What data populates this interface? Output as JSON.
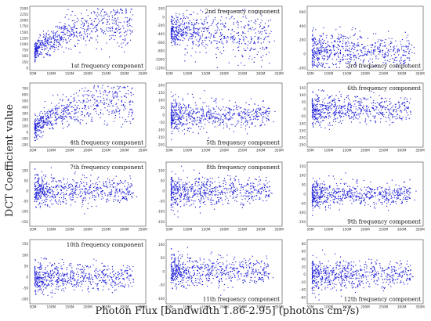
{
  "figure": {
    "ylabel": "DCT Coefficient value",
    "xlabel": "Photon Flux [bandwidth 1.86-2.95] (photons cm²/s)",
    "point_color": "#1f1fd6"
  },
  "chart_data": [
    {
      "type": "scatter",
      "title": "1st frequency component",
      "title_pos": "bottom",
      "x_ticks": [
        "50M",
        "100M",
        "150M",
        "200M",
        "250M",
        "300M",
        "350M"
      ],
      "xlim": [
        50,
        350
      ],
      "y_ticks": [
        0,
        250,
        500,
        750,
        1000,
        1250,
        1500,
        1750,
        2000,
        2250,
        2500
      ],
      "ylim": [
        0,
        2500
      ],
      "shape": "rise",
      "center": 900,
      "spread": 450
    },
    {
      "type": "scatter",
      "title": "2nd frequency component",
      "title_pos": "top",
      "x_ticks": [
        "50M",
        "100M",
        "150M",
        "200M",
        "250M",
        "300M",
        "350M"
      ],
      "xlim": [
        50,
        350
      ],
      "y_ticks": [
        200,
        0,
        -200,
        -400,
        -600,
        -800,
        -1000,
        -1200
      ],
      "ylim": [
        -1200,
        200
      ],
      "shape": "fall",
      "center": -300,
      "spread": 260
    },
    {
      "type": "scatter",
      "title": "3rd frequency component",
      "title_pos": "bottom",
      "x_ticks": [
        "50M",
        "100M",
        "150M",
        "200M",
        "250M",
        "300M",
        "350M"
      ],
      "xlim": [
        50,
        350
      ],
      "y_ticks": [
        -200,
        0,
        200,
        400,
        600
      ],
      "ylim": [
        -200,
        650
      ],
      "shape": "flat",
      "center": 40,
      "spread": 140
    },
    {
      "type": "scatter",
      "title": "4th frequency component",
      "title_pos": "bottom",
      "x_ticks": [
        "50M",
        "100M",
        "150M",
        "200M",
        "250M",
        "300M",
        "350M"
      ],
      "xlim": [
        50,
        350
      ],
      "y_ticks": [
        -200,
        -100,
        0,
        100,
        200,
        300,
        400,
        500,
        600,
        700
      ],
      "ylim": [
        -200,
        750
      ],
      "shape": "rise",
      "center": 150,
      "spread": 170
    },
    {
      "type": "scatter",
      "title": "5th frequency component",
      "title_pos": "bottom",
      "x_ticks": [
        "50M",
        "100M",
        "150M",
        "200M",
        "250M",
        "300M",
        "350M"
      ],
      "xlim": [
        50,
        350
      ],
      "y_ticks": [
        -200,
        -150,
        -100,
        -50,
        0,
        50,
        100,
        150,
        200
      ],
      "ylim": [
        -200,
        200
      ],
      "shape": "flat",
      "center": 0,
      "spread": 55
    },
    {
      "type": "scatter",
      "title": "6th frequency component",
      "title_pos": "top",
      "x_ticks": [
        "50M",
        "100M",
        "150M",
        "200M",
        "250M",
        "300M",
        "350M"
      ],
      "xlim": [
        50,
        350
      ],
      "y_ticks": [
        -250,
        -200,
        -150,
        -100,
        -50,
        0,
        50,
        100,
        150
      ],
      "ylim": [
        -250,
        170
      ],
      "shape": "flat",
      "center": 0,
      "spread": 55
    },
    {
      "type": "scatter",
      "title": "7th frequency component",
      "title_pos": "top",
      "x_ticks": [
        "50M",
        "100M",
        "150M",
        "200M",
        "250M",
        "300M",
        "350M"
      ],
      "xlim": [
        50,
        350
      ],
      "y_ticks": [
        -150,
        -100,
        -50,
        0,
        50,
        100
      ],
      "ylim": [
        -160,
        130
      ],
      "shape": "flat",
      "center": 0,
      "spread": 38
    },
    {
      "type": "scatter",
      "title": "8th frequency component",
      "title_pos": "top",
      "x_ticks": [
        "50M",
        "100M",
        "150M",
        "200M",
        "250M",
        "300M",
        "350M"
      ],
      "xlim": [
        50,
        350
      ],
      "y_ticks": [
        -150,
        -100,
        -50,
        0,
        50,
        100
      ],
      "ylim": [
        -160,
        130
      ],
      "shape": "flat",
      "center": 0,
      "spread": 38
    },
    {
      "type": "scatter",
      "title": "9th frequency component",
      "title_pos": "bottom",
      "x_ticks": [
        "50M",
        "100M",
        "150M",
        "200M",
        "250M",
        "300M",
        "350M"
      ],
      "xlim": [
        50,
        350
      ],
      "y_ticks": [
        -150,
        -100,
        -50,
        0,
        50,
        100,
        150
      ],
      "ylim": [
        -160,
        160
      ],
      "shape": "flat",
      "center": 0,
      "spread": 38
    },
    {
      "type": "scatter",
      "title": "10th frequency component",
      "title_pos": "top",
      "x_ticks": [
        "50M",
        "100M",
        "150M",
        "200M",
        "250M",
        "300M",
        "350M"
      ],
      "xlim": [
        50,
        350
      ],
      "y_ticks": [
        -100,
        -50,
        0,
        50,
        100,
        150
      ],
      "ylim": [
        -110,
        160
      ],
      "shape": "flat",
      "center": 0,
      "spread": 35
    },
    {
      "type": "scatter",
      "title": "11th frequency component",
      "title_pos": "bottom",
      "x_ticks": [
        "50M",
        "100M",
        "150M",
        "200M",
        "250M",
        "300M",
        "350M"
      ],
      "xlim": [
        50,
        350
      ],
      "y_ticks": [
        -100,
        -50,
        0,
        50,
        100
      ],
      "ylim": [
        -110,
        110
      ],
      "shape": "flat",
      "center": 0,
      "spread": 30
    },
    {
      "type": "scatter",
      "title": "12th frequency component",
      "title_pos": "bottom",
      "x_ticks": [
        "50M",
        "100M",
        "150M",
        "200M",
        "250M",
        "300M",
        "350M"
      ],
      "xlim": [
        50,
        350
      ],
      "y_ticks": [
        -60,
        -40,
        -20,
        0,
        20,
        40,
        60,
        80
      ],
      "ylim": [
        -70,
        85
      ],
      "shape": "flat",
      "center": 0,
      "spread": 20
    }
  ]
}
